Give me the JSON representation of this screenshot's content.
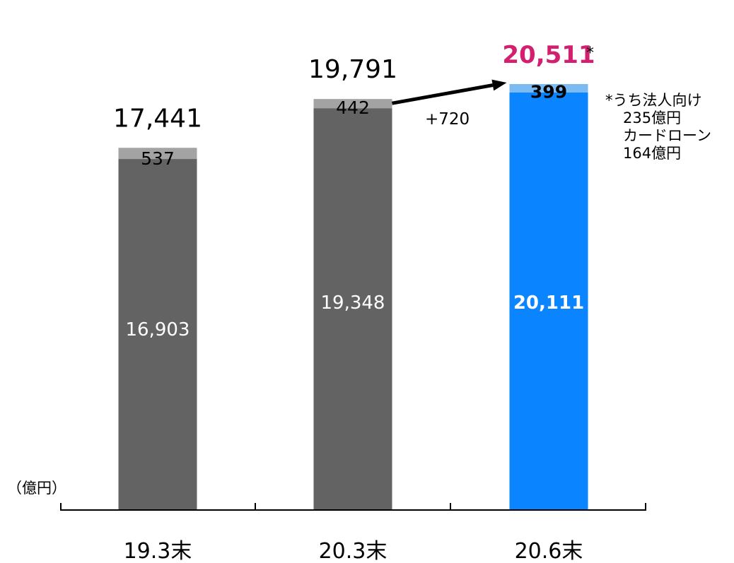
{
  "unit_label": "（億円）",
  "change_label": "+720",
  "note": {
    "marker": "*",
    "lines": [
      "*うち法人向け",
      "235億円",
      "カードローン",
      "164億円"
    ]
  },
  "colors": {
    "past_base": "#636363",
    "past_top": "#a3a3a3",
    "current_base": "#0A84FF",
    "current_top": "#7BBBF2",
    "current_total": "#D31F6F",
    "axis": "#000000"
  },
  "chart_data": {
    "type": "bar",
    "stacked": true,
    "categories": [
      "19.3末",
      "20.3末",
      "20.6末"
    ],
    "series": [
      {
        "values": [
          16903,
          19348,
          20111
        ]
      },
      {
        "values": [
          537,
          442,
          399
        ]
      }
    ],
    "totals": [
      17441,
      19791,
      20511
    ],
    "labels": {
      "base": [
        "16,903",
        "19,348",
        "20,111"
      ],
      "top": [
        "537",
        "442",
        "399"
      ],
      "total": [
        "17,441",
        "19,791",
        "20,511"
      ]
    },
    "highlight_index": 2,
    "ylim": [
      0,
      21000
    ]
  }
}
